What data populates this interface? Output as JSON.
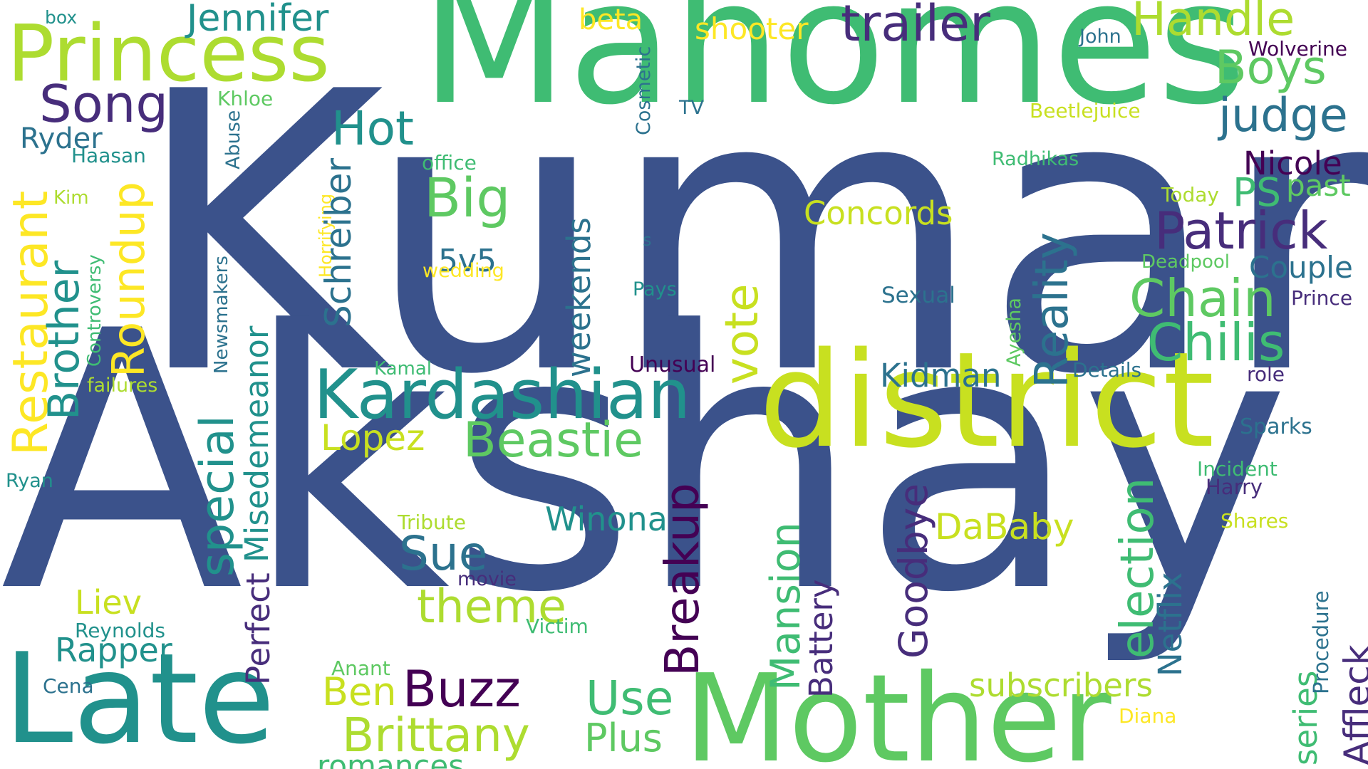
{
  "colors": {
    "background": "#ffffff",
    "palette": [
      "#3b528b",
      "#21918c",
      "#2c728e",
      "#5ec962",
      "#3fbc73",
      "#addc30",
      "#c8e020",
      "#fde725",
      "#440154",
      "#472d7b"
    ]
  },
  "words": [
    {
      "text": "Kumar",
      "color": "#3b528b"
    },
    {
      "text": "Akshay",
      "color": "#3b528b"
    },
    {
      "text": "Mahomes",
      "color": "#3fbc73"
    },
    {
      "text": "district",
      "color": "#c8e020"
    },
    {
      "text": "Late",
      "color": "#21918c"
    },
    {
      "text": "Mother",
      "color": "#5ec962"
    },
    {
      "text": "Princess",
      "color": "#addc30"
    },
    {
      "text": "Kardashian",
      "color": "#21918c"
    },
    {
      "text": "Jennifer",
      "color": "#21918c"
    },
    {
      "text": "trailer",
      "color": "#472d7b"
    },
    {
      "text": "Handle",
      "color": "#addc30"
    },
    {
      "text": "Boys",
      "color": "#5ec962"
    },
    {
      "text": "judge",
      "color": "#2c728e"
    },
    {
      "text": "Song",
      "color": "#472d7b"
    },
    {
      "text": "Hot",
      "color": "#21918c"
    },
    {
      "text": "Big",
      "color": "#5ec962"
    },
    {
      "text": "Patrick",
      "color": "#472d7b"
    },
    {
      "text": "Chain",
      "color": "#5ec962"
    },
    {
      "text": "Chilis",
      "color": "#3fbc73"
    },
    {
      "text": "Nicole",
      "color": "#440154"
    },
    {
      "text": "PS",
      "color": "#3fbc73"
    },
    {
      "text": "past",
      "color": "#5ec962"
    },
    {
      "text": "Couple",
      "color": "#2c728e"
    },
    {
      "text": "Concords",
      "color": "#c8e020"
    },
    {
      "text": "Beastie",
      "color": "#5ec962"
    },
    {
      "text": "Lopez",
      "color": "#c8e020"
    },
    {
      "text": "Kidman",
      "color": "#2c728e"
    },
    {
      "text": "Sue",
      "color": "#2c728e"
    },
    {
      "text": "theme",
      "color": "#addc30"
    },
    {
      "text": "Winona",
      "color": "#21918c"
    },
    {
      "text": "DaBaby",
      "color": "#c8e020"
    },
    {
      "text": "Buzz",
      "color": "#440154"
    },
    {
      "text": "Brittany",
      "color": "#addc30"
    },
    {
      "text": "Use",
      "color": "#3fbc73"
    },
    {
      "text": "Plus",
      "color": "#5ec962"
    },
    {
      "text": "romances",
      "color": "#3fbc73"
    },
    {
      "text": "Ben",
      "color": "#c8e020"
    },
    {
      "text": "Rapper",
      "color": "#21918c"
    },
    {
      "text": "Liev",
      "color": "#c8e020"
    },
    {
      "text": "subscribers",
      "color": "#addc30"
    },
    {
      "text": "5v5",
      "color": "#2c728e"
    },
    {
      "text": "shooter",
      "color": "#fde725"
    },
    {
      "text": "beta",
      "color": "#fde725"
    },
    {
      "text": "Ryder",
      "color": "#2c728e"
    },
    {
      "text": "box",
      "color": "#21918c"
    },
    {
      "text": "Haasan",
      "color": "#21918c"
    },
    {
      "text": "Khloe",
      "color": "#5ec962"
    },
    {
      "text": "Kim",
      "color": "#addc30"
    },
    {
      "text": "office",
      "color": "#3fbc73"
    },
    {
      "text": "wedding",
      "color": "#fde725"
    },
    {
      "text": "s",
      "color": "#2c728e"
    },
    {
      "text": "Pays",
      "color": "#21918c"
    },
    {
      "text": "TV",
      "color": "#2c728e"
    },
    {
      "text": "John",
      "color": "#2c728e"
    },
    {
      "text": "Wolverine",
      "color": "#440154"
    },
    {
      "text": "Beetlejuice",
      "color": "#c8e020"
    },
    {
      "text": "Radhikas",
      "color": "#3fbc73"
    },
    {
      "text": "Today",
      "color": "#addc30"
    },
    {
      "text": "Deadpool",
      "color": "#5ec962"
    },
    {
      "text": "Sexual",
      "color": "#2c728e"
    },
    {
      "text": "Prince",
      "color": "#472d7b"
    },
    {
      "text": "Details",
      "color": "#2c728e"
    },
    {
      "text": "role",
      "color": "#472d7b"
    },
    {
      "text": "Unusual",
      "color": "#440154"
    },
    {
      "text": "Kamal",
      "color": "#3fbc73"
    },
    {
      "text": "failures",
      "color": "#addc30"
    },
    {
      "text": "Sparks",
      "color": "#2c728e"
    },
    {
      "text": "Incident",
      "color": "#3fbc73"
    },
    {
      "text": "Harry",
      "color": "#472d7b"
    },
    {
      "text": "Shares",
      "color": "#c8e020"
    },
    {
      "text": "Ryan",
      "color": "#21918c"
    },
    {
      "text": "Tribute",
      "color": "#addc30"
    },
    {
      "text": "movie",
      "color": "#472d7b"
    },
    {
      "text": "Victim",
      "color": "#3fbc73"
    },
    {
      "text": "Reynolds",
      "color": "#21918c"
    },
    {
      "text": "Anant",
      "color": "#5ec962"
    },
    {
      "text": "Cena",
      "color": "#2c728e"
    },
    {
      "text": "Diana",
      "color": "#fde725"
    },
    {
      "text": "Restaurant",
      "color": "#fde725"
    },
    {
      "text": "Brother",
      "color": "#21918c"
    },
    {
      "text": "Roundup",
      "color": "#fde725"
    },
    {
      "text": "Controversy",
      "color": "#3fbc73"
    },
    {
      "text": "Abuse",
      "color": "#2c728e"
    },
    {
      "text": "Horrifying",
      "color": "#fde725"
    },
    {
      "text": "Newsmakers",
      "color": "#2c728e"
    },
    {
      "text": "Schreiber",
      "color": "#2c728e"
    },
    {
      "text": "special",
      "color": "#21918c"
    },
    {
      "text": "Misedemeanor",
      "color": "#21918c"
    },
    {
      "text": "Perfect",
      "color": "#472d7b"
    },
    {
      "text": "weekends",
      "color": "#2c728e"
    },
    {
      "text": "vote",
      "color": "#c8e020"
    },
    {
      "text": "Cosmetic",
      "color": "#2c728e"
    },
    {
      "text": "Breakup",
      "color": "#440154"
    },
    {
      "text": "Mansion",
      "color": "#3fbc73"
    },
    {
      "text": "Battery",
      "color": "#472d7b"
    },
    {
      "text": "Goodbye",
      "color": "#472d7b"
    },
    {
      "text": "Reality",
      "color": "#2c728e"
    },
    {
      "text": "Ayesha",
      "color": "#5ec962"
    },
    {
      "text": "election",
      "color": "#3fbc73"
    },
    {
      "text": "Netflix",
      "color": "#2c728e"
    },
    {
      "text": "series",
      "color": "#3fbc73"
    },
    {
      "text": "Procedure",
      "color": "#2c728e"
    },
    {
      "text": "Affleck",
      "color": "#472d7b"
    }
  ]
}
